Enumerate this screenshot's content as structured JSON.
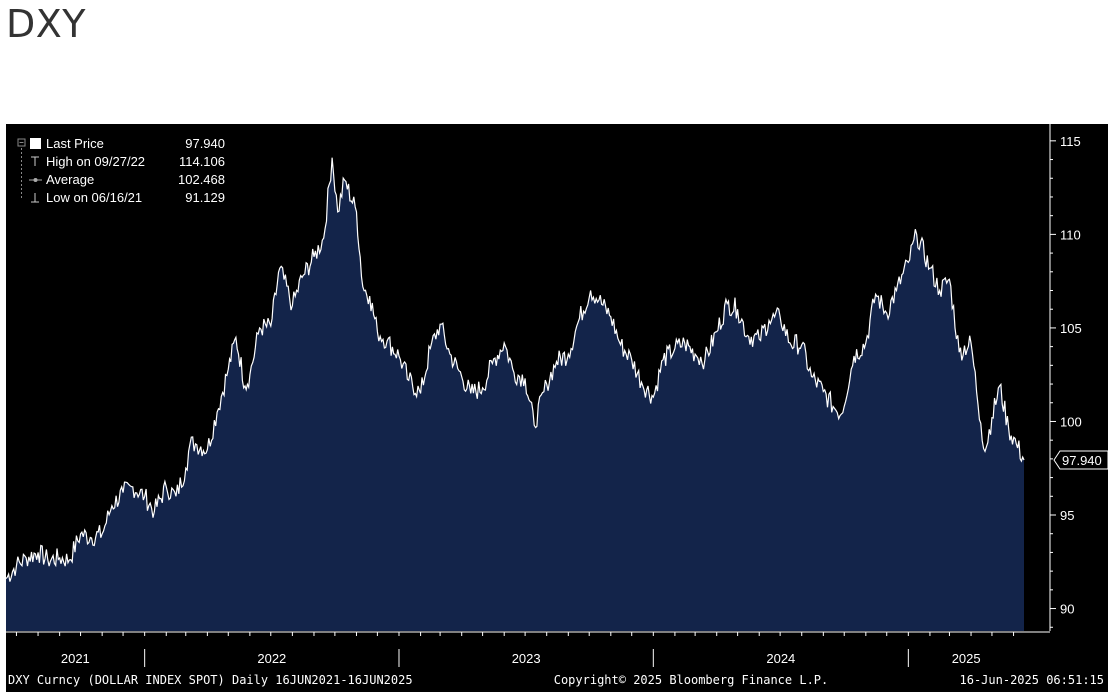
{
  "page": {
    "title": "DXY"
  },
  "colors": {
    "background": "#000000",
    "area_fill": "#13244a",
    "line": "#ffffff",
    "axis": "#ffffff"
  },
  "legend": {
    "position": "top-left",
    "items": [
      {
        "icon": "square-icon",
        "label": "Last Price",
        "value": "97.940"
      },
      {
        "icon": "high-marker-icon",
        "label": "High on 09/27/22",
        "value": "114.106"
      },
      {
        "icon": "average-line-icon",
        "label": "Average",
        "value": "102.468"
      },
      {
        "icon": "low-marker-icon",
        "label": "Low on 06/16/21",
        "value": "91.129"
      }
    ]
  },
  "last_price_tag": "97.940",
  "footer": {
    "left": "DXY Curncy (DOLLAR INDEX SPOT)  Daily 16JUN2021-16JUN2025",
    "center": "Copyright© 2025 Bloomberg Finance L.P.",
    "right": "16-Jun-2025 06:51:15"
  },
  "chart_data": {
    "type": "area",
    "title": "",
    "xlabel": "",
    "ylabel": "",
    "ylim": [
      88.8,
      115.9
    ],
    "y_ticks": [
      90,
      95,
      100,
      105,
      110,
      115
    ],
    "y_tick_labels": [
      "90",
      "95",
      "100",
      "105",
      "110",
      "115"
    ],
    "x_range": [
      "2021-06-16",
      "2025-06-16"
    ],
    "x_year_labels": [
      "2021",
      "2022",
      "2023",
      "2024",
      "2025"
    ],
    "x_year_boundaries": [
      "2022-01-01",
      "2023-01-01",
      "2024-01-01",
      "2025-01-01"
    ],
    "grid": false,
    "series": [
      {
        "name": "Last Price",
        "x": [
          "2021-06-16",
          "2021-07-01",
          "2021-07-15",
          "2021-08-01",
          "2021-08-15",
          "2021-09-01",
          "2021-09-15",
          "2021-10-01",
          "2021-10-15",
          "2021-11-01",
          "2021-11-15",
          "2021-12-01",
          "2021-12-15",
          "2022-01-01",
          "2022-01-15",
          "2022-02-01",
          "2022-02-15",
          "2022-03-01",
          "2022-03-07",
          "2022-03-15",
          "2022-04-01",
          "2022-04-15",
          "2022-05-01",
          "2022-05-12",
          "2022-05-25",
          "2022-06-01",
          "2022-06-15",
          "2022-07-01",
          "2022-07-14",
          "2022-08-01",
          "2022-08-15",
          "2022-09-01",
          "2022-09-15",
          "2022-09-27",
          "2022-10-05",
          "2022-10-15",
          "2022-11-01",
          "2022-11-10",
          "2022-11-20",
          "2022-12-01",
          "2022-12-15",
          "2023-01-01",
          "2023-01-15",
          "2023-02-01",
          "2023-02-15",
          "2023-03-01",
          "2023-03-15",
          "2023-04-01",
          "2023-04-14",
          "2023-05-01",
          "2023-05-15",
          "2023-06-01",
          "2023-06-15",
          "2023-07-01",
          "2023-07-14",
          "2023-08-01",
          "2023-08-15",
          "2023-09-01",
          "2023-09-15",
          "2023-10-03",
          "2023-10-15",
          "2023-11-01",
          "2023-11-15",
          "2023-12-01",
          "2023-12-15",
          "2024-01-01",
          "2024-01-15",
          "2024-02-01",
          "2024-02-15",
          "2024-03-01",
          "2024-03-15",
          "2024-04-01",
          "2024-04-16",
          "2024-05-01",
          "2024-05-15",
          "2024-06-01",
          "2024-06-15",
          "2024-07-01",
          "2024-07-15",
          "2024-08-01",
          "2024-08-15",
          "2024-09-01",
          "2024-09-15",
          "2024-09-27",
          "2024-10-15",
          "2024-11-01",
          "2024-11-15",
          "2024-12-01",
          "2024-12-15",
          "2025-01-01",
          "2025-01-13",
          "2025-02-01",
          "2025-02-15",
          "2025-03-01",
          "2025-03-15",
          "2025-04-01",
          "2025-04-15",
          "2025-04-21",
          "2025-05-01",
          "2025-05-12",
          "2025-05-25",
          "2025-06-05",
          "2025-06-16"
        ],
        "values": [
          91.6,
          92.3,
          92.7,
          93.0,
          92.6,
          92.7,
          92.6,
          94.0,
          93.8,
          94.0,
          95.5,
          96.2,
          96.5,
          96.0,
          95.2,
          96.5,
          96.0,
          97.5,
          98.8,
          98.8,
          98.5,
          100.5,
          102.8,
          104.5,
          101.9,
          102.5,
          105.0,
          105.1,
          108.2,
          106.2,
          107.7,
          108.8,
          109.8,
          114.1,
          111.2,
          112.9,
          111.2,
          107.2,
          106.7,
          104.8,
          104.3,
          103.5,
          102.2,
          101.5,
          103.9,
          105.2,
          103.6,
          102.4,
          101.5,
          101.8,
          103.1,
          104.2,
          102.6,
          102.3,
          99.8,
          102.0,
          103.2,
          103.6,
          105.3,
          107.0,
          106.5,
          105.6,
          104.1,
          103.3,
          102.1,
          101.3,
          103.3,
          103.9,
          104.2,
          103.6,
          103.3,
          104.8,
          106.3,
          106.0,
          104.6,
          104.4,
          105.4,
          105.6,
          104.2,
          104.1,
          102.4,
          101.6,
          100.8,
          100.4,
          103.5,
          104.2,
          106.8,
          105.8,
          107.0,
          108.5,
          110.0,
          108.2,
          107.0,
          107.6,
          103.7,
          104.2,
          99.9,
          98.4,
          100.2,
          101.9,
          99.6,
          98.8,
          97.94
        ]
      }
    ],
    "reference_lines": [
      {
        "name": "Average",
        "value": 102.468
      }
    ]
  }
}
